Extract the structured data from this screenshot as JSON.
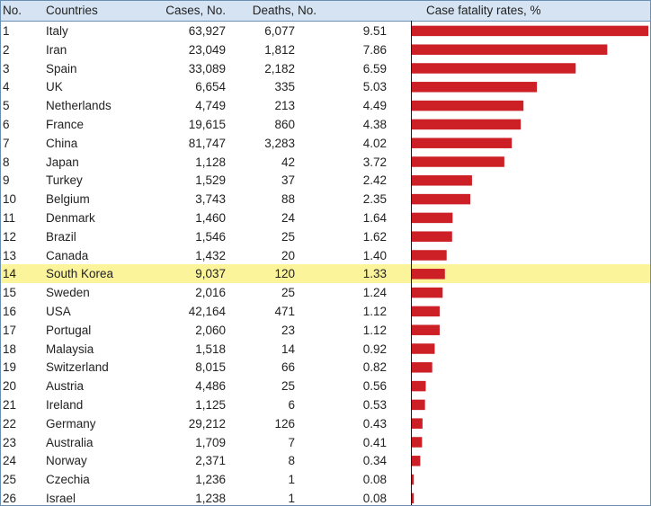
{
  "header": {
    "no": "No.",
    "countries": "Countries",
    "cases": "Cases, No.",
    "deaths": "Deaths, No.",
    "cfr": "Case fatality rates, %"
  },
  "colors": {
    "bar": "#cc1f26",
    "highlight": "#fbf49b",
    "header_bg": "#d5e3f3",
    "border": "#6a8fb4"
  },
  "highlight_country": "South Korea",
  "rows": [
    {
      "no": "1",
      "country": "Italy",
      "cases": "63,927",
      "deaths": "6,077",
      "rate": "9.51"
    },
    {
      "no": "2",
      "country": "Iran",
      "cases": "23,049",
      "deaths": "1,812",
      "rate": "7.86"
    },
    {
      "no": "3",
      "country": "Spain",
      "cases": "33,089",
      "deaths": "2,182",
      "rate": "6.59"
    },
    {
      "no": "4",
      "country": "UK",
      "cases": "6,654",
      "deaths": "335",
      "rate": "5.03"
    },
    {
      "no": "5",
      "country": "Netherlands",
      "cases": "4,749",
      "deaths": "213",
      "rate": "4.49"
    },
    {
      "no": "6",
      "country": "France",
      "cases": "19,615",
      "deaths": "860",
      "rate": "4.38"
    },
    {
      "no": "7",
      "country": "China",
      "cases": "81,747",
      "deaths": "3,283",
      "rate": "4.02"
    },
    {
      "no": "8",
      "country": "Japan",
      "cases": "1,128",
      "deaths": "42",
      "rate": "3.72"
    },
    {
      "no": "9",
      "country": "Turkey",
      "cases": "1,529",
      "deaths": "37",
      "rate": "2.42"
    },
    {
      "no": "10",
      "country": "Belgium",
      "cases": "3,743",
      "deaths": "88",
      "rate": "2.35"
    },
    {
      "no": "11",
      "country": "Denmark",
      "cases": "1,460",
      "deaths": "24",
      "rate": "1.64"
    },
    {
      "no": "12",
      "country": "Brazil",
      "cases": "1,546",
      "deaths": "25",
      "rate": "1.62"
    },
    {
      "no": "13",
      "country": "Canada",
      "cases": "1,432",
      "deaths": "20",
      "rate": "1.40"
    },
    {
      "no": "14",
      "country": "South Korea",
      "cases": "9,037",
      "deaths": "120",
      "rate": "1.33"
    },
    {
      "no": "15",
      "country": "Sweden",
      "cases": "2,016",
      "deaths": "25",
      "rate": "1.24"
    },
    {
      "no": "16",
      "country": "USA",
      "cases": "42,164",
      "deaths": "471",
      "rate": "1.12"
    },
    {
      "no": "17",
      "country": "Portugal",
      "cases": "2,060",
      "deaths": "23",
      "rate": "1.12"
    },
    {
      "no": "18",
      "country": "Malaysia",
      "cases": "1,518",
      "deaths": "14",
      "rate": "0.92"
    },
    {
      "no": "19",
      "country": "Switzerland",
      "cases": "8,015",
      "deaths": "66",
      "rate": "0.82"
    },
    {
      "no": "20",
      "country": "Austria",
      "cases": "4,486",
      "deaths": "25",
      "rate": "0.56"
    },
    {
      "no": "21",
      "country": "Ireland",
      "cases": "1,125",
      "deaths": "6",
      "rate": "0.53"
    },
    {
      "no": "22",
      "country": "Germany",
      "cases": "29,212",
      "deaths": "126",
      "rate": "0.43"
    },
    {
      "no": "23",
      "country": "Australia",
      "cases": "1,709",
      "deaths": "7",
      "rate": "0.41"
    },
    {
      "no": "24",
      "country": "Norway",
      "cases": "2,371",
      "deaths": "8",
      "rate": "0.34"
    },
    {
      "no": "25",
      "country": "Czechia",
      "cases": "1,236",
      "deaths": "1",
      "rate": "0.08"
    },
    {
      "no": "26",
      "country": "Israel",
      "cases": "1,238",
      "deaths": "1",
      "rate": "0.08"
    }
  ],
  "chart_data": {
    "type": "bar",
    "orientation": "horizontal",
    "title": "Case fatality rates, %",
    "categories": [
      "Italy",
      "Iran",
      "Spain",
      "UK",
      "Netherlands",
      "France",
      "China",
      "Japan",
      "Turkey",
      "Belgium",
      "Denmark",
      "Brazil",
      "Canada",
      "South Korea",
      "Sweden",
      "USA",
      "Portugal",
      "Malaysia",
      "Switzerland",
      "Austria",
      "Ireland",
      "Germany",
      "Australia",
      "Norway",
      "Czechia",
      "Israel"
    ],
    "values": [
      9.51,
      7.86,
      6.59,
      5.03,
      4.49,
      4.38,
      4.02,
      3.72,
      2.42,
      2.35,
      1.64,
      1.62,
      1.4,
      1.33,
      1.24,
      1.12,
      1.12,
      0.92,
      0.82,
      0.56,
      0.53,
      0.43,
      0.41,
      0.34,
      0.08,
      0.08
    ],
    "xlim": [
      0,
      9.51
    ],
    "grid": false,
    "legend": "none"
  }
}
